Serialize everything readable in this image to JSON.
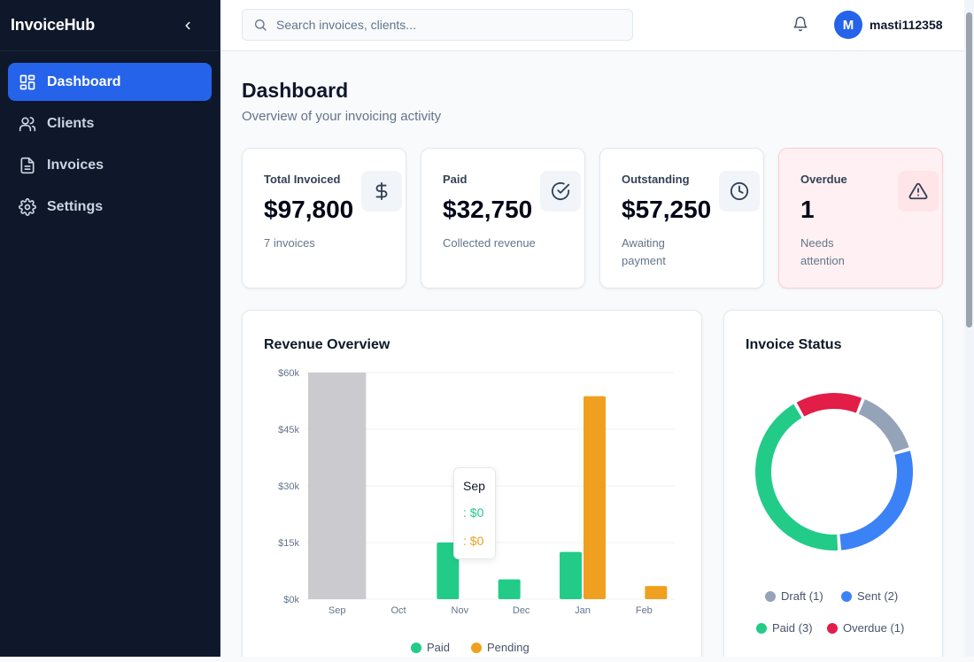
{
  "app": {
    "name": "InvoiceHub"
  },
  "sidebar": {
    "items": [
      {
        "label": "Dashboard",
        "icon": "grid-icon",
        "active": true
      },
      {
        "label": "Clients",
        "icon": "users-icon",
        "active": false
      },
      {
        "label": "Invoices",
        "icon": "file-text-icon",
        "active": false
      },
      {
        "label": "Settings",
        "icon": "gear-icon",
        "active": false
      }
    ]
  },
  "header": {
    "search_placeholder": "Search invoices, clients...",
    "user": {
      "initial": "M",
      "name": "masti112358"
    }
  },
  "page": {
    "title": "Dashboard",
    "subtitle": "Overview of your invoicing activity"
  },
  "stats": [
    {
      "label": "Total Invoiced",
      "value": "$97,800",
      "sub": "7 invoices",
      "icon": "dollar-icon"
    },
    {
      "label": "Paid",
      "value": "$32,750",
      "sub": "Collected revenue",
      "icon": "check-circle-icon"
    },
    {
      "label": "Outstanding",
      "value": "$57,250",
      "sub": "Awaiting payment",
      "icon": "clock-icon"
    },
    {
      "label": "Overdue",
      "value": "1",
      "sub": "Needs attention",
      "icon": "alert-triangle-icon"
    }
  ],
  "revenue": {
    "title": "Revenue Overview",
    "tooltip": {
      "title": "Sep",
      "paid": ": $0",
      "pending": ": $0"
    }
  },
  "status_panel": {
    "title": "Invoice Status"
  },
  "colors": {
    "accent": "#2563eb",
    "sidebar_bg": "#0f172a",
    "paid": "#22cc88",
    "pending": "#f0a020",
    "sent": "#3b82f6",
    "draft": "#94a3b8",
    "overdue": "#e11d48",
    "hover_bar": "#cbcbcf"
  },
  "chart_data": [
    {
      "type": "bar",
      "title": "Revenue Overview",
      "categories": [
        "Sep",
        "Oct",
        "Nov",
        "Dec",
        "Jan",
        "Feb"
      ],
      "ylim": [
        0,
        60000
      ],
      "yticks": [
        "$0k",
        "$15k",
        "$30k",
        "$45k",
        "$60k"
      ],
      "ytick_values": [
        0,
        15000,
        30000,
        45000,
        60000
      ],
      "grid": true,
      "legend": "bottom",
      "highlighted_category": "Sep",
      "series": [
        {
          "name": "Paid",
          "color": "#22cc88",
          "values": [
            0,
            0,
            15000,
            5250,
            12500,
            0
          ]
        },
        {
          "name": "Pending",
          "color": "#f0a020",
          "values": [
            0,
            0,
            0,
            0,
            53750,
            3500
          ]
        }
      ]
    },
    {
      "type": "pie",
      "title": "Invoice Status",
      "legend": "bottom",
      "slices": [
        {
          "name": "Draft",
          "count": 1,
          "legend_label": "Draft (1)",
          "color": "#94a3b8"
        },
        {
          "name": "Sent",
          "count": 2,
          "legend_label": "Sent (2)",
          "color": "#3b82f6"
        },
        {
          "name": "Paid",
          "count": 3,
          "legend_label": "Paid (3)",
          "color": "#22cc88"
        },
        {
          "name": "Overdue",
          "count": 1,
          "legend_label": "Overdue (1)",
          "color": "#e11d48"
        }
      ]
    }
  ]
}
